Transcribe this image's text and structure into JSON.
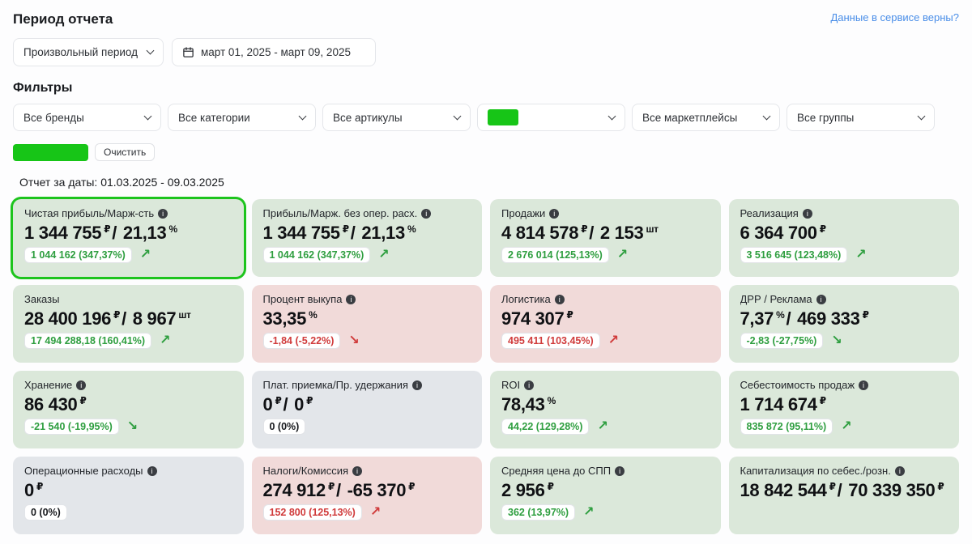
{
  "colors": {
    "accent_green": "#1dc41d",
    "positive": "#2e9e3f",
    "negative": "#d03b3b",
    "card_green": "#dbe8da",
    "card_red": "#f1dad9",
    "card_gray": "#e3e6ea",
    "link_blue": "#4a8ee8",
    "redacted_green": "#17c517"
  },
  "header": {
    "period_title": "Период отчета",
    "period_select": "Произвольный период",
    "date_range": "март 01, 2025 - март 09, 2025",
    "verify_link": "Данные в сервисе верны?"
  },
  "filters": {
    "title": "Фильтры",
    "dropdowns": [
      "Все бренды",
      "Все категории",
      "Все артикулы",
      "",
      "Все маркетплейсы",
      "Все группы"
    ],
    "clear_button": "Очистить"
  },
  "report": {
    "dates_line": "Отчет за даты: 01.03.2025 - 09.03.2025"
  },
  "cards": [
    {
      "title": "Чистая прибыль/Марж-сть",
      "info": true,
      "value": [
        {
          "num": "1 344 755",
          "unit": "₽"
        },
        {
          "num": "21,13",
          "unit": "%"
        }
      ],
      "badge": {
        "text": "1 044 162 (347,37%)",
        "tone": "green"
      },
      "arrow": {
        "dir": "up",
        "tone": "green"
      },
      "bg": "green",
      "selected": true
    },
    {
      "title": "Прибыль/Марж. без опер. расх.",
      "info": true,
      "value": [
        {
          "num": "1 344 755",
          "unit": "₽"
        },
        {
          "num": "21,13",
          "unit": "%"
        }
      ],
      "badge": {
        "text": "1 044 162 (347,37%)",
        "tone": "green"
      },
      "arrow": {
        "dir": "up",
        "tone": "green"
      },
      "bg": "green",
      "selected": false
    },
    {
      "title": "Продажи",
      "info": true,
      "value": [
        {
          "num": "4 814 578",
          "unit": "₽"
        },
        {
          "num": "2 153",
          "unit": "шт"
        }
      ],
      "badge": {
        "text": "2 676 014 (125,13%)",
        "tone": "green"
      },
      "arrow": {
        "dir": "up",
        "tone": "green"
      },
      "bg": "green",
      "selected": false
    },
    {
      "title": "Реализация",
      "info": true,
      "value": [
        {
          "num": "6 364 700",
          "unit": "₽"
        }
      ],
      "badge": {
        "text": "3 516 645 (123,48%)",
        "tone": "green"
      },
      "arrow": {
        "dir": "up",
        "tone": "green"
      },
      "bg": "green",
      "selected": false
    },
    {
      "title": "Заказы",
      "info": false,
      "value": [
        {
          "num": "28 400 196",
          "unit": "₽"
        },
        {
          "num": "8 967",
          "unit": "шт"
        }
      ],
      "badge": {
        "text": "17 494 288,18 (160,41%)",
        "tone": "green"
      },
      "arrow": {
        "dir": "up",
        "tone": "green"
      },
      "bg": "green",
      "selected": false
    },
    {
      "title": "Процент выкупа",
      "info": true,
      "value": [
        {
          "num": "33,35",
          "unit": "%"
        }
      ],
      "badge": {
        "text": "-1,84 (-5,22%)",
        "tone": "red"
      },
      "arrow": {
        "dir": "down",
        "tone": "red"
      },
      "bg": "red",
      "selected": false
    },
    {
      "title": "Логистика",
      "info": true,
      "value": [
        {
          "num": "974 307",
          "unit": "₽"
        }
      ],
      "badge": {
        "text": "495 411 (103,45%)",
        "tone": "red"
      },
      "arrow": {
        "dir": "up",
        "tone": "red"
      },
      "bg": "red",
      "selected": false
    },
    {
      "title": "ДРР / Реклама",
      "info": true,
      "value": [
        {
          "num": "7,37",
          "unit": "%"
        },
        {
          "num": "469 333",
          "unit": "₽"
        }
      ],
      "badge": {
        "text": "-2,83 (-27,75%)",
        "tone": "green"
      },
      "arrow": {
        "dir": "down",
        "tone": "green"
      },
      "bg": "green",
      "selected": false
    },
    {
      "title": "Хранение",
      "info": true,
      "value": [
        {
          "num": "86 430",
          "unit": "₽"
        }
      ],
      "badge": {
        "text": "-21 540 (-19,95%)",
        "tone": "green"
      },
      "arrow": {
        "dir": "down",
        "tone": "green"
      },
      "bg": "green",
      "selected": false
    },
    {
      "title": "Плат. приемка/Пр. удержания",
      "info": true,
      "value": [
        {
          "num": "0",
          "unit": "₽"
        },
        {
          "num": "0",
          "unit": "₽"
        }
      ],
      "badge": {
        "text": "0 (0%)",
        "tone": "neutral"
      },
      "arrow": null,
      "bg": "gray",
      "selected": false
    },
    {
      "title": "ROI",
      "info": true,
      "value": [
        {
          "num": "78,43",
          "unit": "%"
        }
      ],
      "badge": {
        "text": "44,22 (129,28%)",
        "tone": "green"
      },
      "arrow": {
        "dir": "up",
        "tone": "green"
      },
      "bg": "green",
      "selected": false
    },
    {
      "title": "Себестоимость продаж",
      "info": true,
      "value": [
        {
          "num": "1 714 674",
          "unit": "₽"
        }
      ],
      "badge": {
        "text": "835 872 (95,11%)",
        "tone": "green"
      },
      "arrow": {
        "dir": "up",
        "tone": "green"
      },
      "bg": "green",
      "selected": false
    },
    {
      "title": "Операционные расходы",
      "info": true,
      "value": [
        {
          "num": "0",
          "unit": "₽"
        }
      ],
      "badge": {
        "text": "0 (0%)",
        "tone": "neutral"
      },
      "arrow": null,
      "bg": "gray",
      "selected": false
    },
    {
      "title": "Налоги/Комиссия",
      "info": true,
      "value": [
        {
          "num": "274 912",
          "unit": "₽"
        },
        {
          "num": "-65 370",
          "unit": "₽"
        }
      ],
      "badge": {
        "text": "152 800 (125,13%)",
        "tone": "red"
      },
      "arrow": {
        "dir": "up",
        "tone": "red"
      },
      "bg": "red",
      "selected": false
    },
    {
      "title": "Средняя цена до СПП",
      "info": true,
      "value": [
        {
          "num": "2 956",
          "unit": "₽"
        }
      ],
      "badge": {
        "text": "362 (13,97%)",
        "tone": "green"
      },
      "arrow": {
        "dir": "up",
        "tone": "green"
      },
      "bg": "green",
      "selected": false
    },
    {
      "title": "Капитализация по себес./розн.",
      "info": true,
      "value": [
        {
          "num": "18 842 544",
          "unit": "₽"
        },
        {
          "num": "70 339 350",
          "unit": "₽"
        }
      ],
      "badge": null,
      "arrow": null,
      "bg": "green",
      "selected": false
    }
  ]
}
